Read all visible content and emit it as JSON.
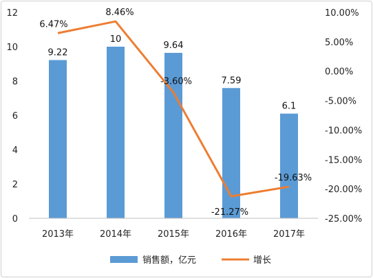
{
  "chart_data": {
    "type": "bar",
    "categories": [
      "2013年",
      "2014年",
      "2015年",
      "2016年",
      "2017年"
    ],
    "series": [
      {
        "name": "销售额，亿元",
        "type": "bar",
        "axis": "left",
        "color": "#5b9bd5",
        "values": [
          9.22,
          10,
          9.64,
          7.59,
          6.1
        ],
        "labels": [
          "9.22",
          "10",
          "9.64",
          "7.59",
          "6.1"
        ]
      },
      {
        "name": "增长",
        "type": "line",
        "axis": "right",
        "color": "#ed7d31",
        "values": [
          6.47,
          8.46,
          -3.6,
          -21.27,
          -19.63
        ],
        "labels": [
          "6.47%",
          "8.46%",
          "-3.60%",
          "-21.27%",
          "-19.63%"
        ]
      }
    ],
    "y_left": {
      "min": 0,
      "max": 12,
      "ticks": [
        "0",
        "2",
        "4",
        "6",
        "8",
        "10",
        "12"
      ]
    },
    "y_right": {
      "min": -25,
      "max": 10,
      "ticks": [
        "-25.00%",
        "-20.00%",
        "-15.00%",
        "-10.00%",
        "-5.00%",
        "0.00%",
        "5.00%",
        "10.00%"
      ]
    },
    "grid": false,
    "legend_position": "bottom"
  }
}
